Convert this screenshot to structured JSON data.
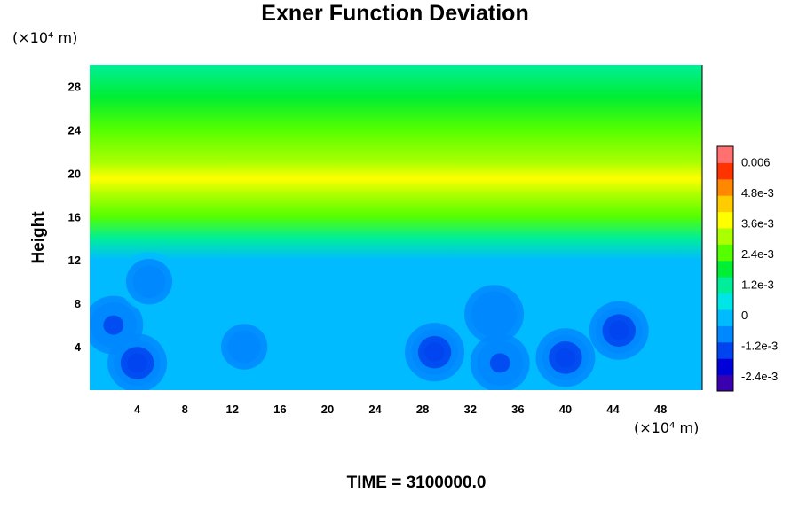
{
  "chart_data": {
    "type": "heatmap",
    "title": "Exner Function Deviation",
    "ylabel": "Height",
    "x_unit": "(×10⁴ m)",
    "y_unit": "(×10⁴ m)",
    "xlim": [
      0,
      51.5
    ],
    "ylim": [
      0,
      30
    ],
    "x_ticks": [
      "4",
      "8",
      "12",
      "16",
      "20",
      "24",
      "28",
      "32",
      "36",
      "40",
      "44",
      "48"
    ],
    "y_ticks": [
      "4",
      "8",
      "12",
      "16",
      "20",
      "24",
      "28"
    ],
    "colorbar": {
      "ticks": [
        "0.006",
        "4.8e-3",
        "3.6e-3",
        "2.4e-3",
        "1.2e-3",
        "0",
        "-1.2e-3",
        "-2.4e-3"
      ],
      "range": [
        -0.003,
        0.0066
      ],
      "colors": [
        "#3a00b0",
        "#0000d8",
        "#0044f0",
        "#0088ff",
        "#00bbff",
        "#00e5e5",
        "#00ee99",
        "#00ee33",
        "#55ff00",
        "#aaff00",
        "#ffff00",
        "#ffcc00",
        "#ff8800",
        "#ff3300",
        "#ff7070"
      ]
    },
    "mean_profile": [
      {
        "height": 0,
        "value": 2e-05
      },
      {
        "height": 4,
        "value": -0.0001
      },
      {
        "height": 8,
        "value": -0.00025
      },
      {
        "height": 10,
        "value": -0.0004
      },
      {
        "height": 12,
        "value": 0.0001
      },
      {
        "height": 14,
        "value": 0.0012
      },
      {
        "height": 16,
        "value": 0.0024
      },
      {
        "height": 18,
        "value": 0.0033
      },
      {
        "height": 19.5,
        "value": 0.0036
      },
      {
        "height": 21,
        "value": 0.0031
      },
      {
        "height": 24,
        "value": 0.0022
      },
      {
        "height": 27,
        "value": 0.0016
      },
      {
        "height": 30,
        "value": 0.0012
      }
    ],
    "minima": [
      {
        "x": 2,
        "y": 6,
        "value": -0.0012
      },
      {
        "x": 4,
        "y": 2.5,
        "value": -0.0014
      },
      {
        "x": 13,
        "y": 4,
        "value": -0.0008
      },
      {
        "x": 29,
        "y": 3.5,
        "value": -0.0014
      },
      {
        "x": 34.5,
        "y": 2.5,
        "value": -0.0012
      },
      {
        "x": 40,
        "y": 3,
        "value": -0.0013
      },
      {
        "x": 44.5,
        "y": 5.5,
        "value": -0.0015
      },
      {
        "x": 34,
        "y": 7,
        "value": -0.0009
      },
      {
        "x": 5,
        "y": 10,
        "value": -0.0008
      }
    ]
  },
  "footer": "TIME = 3100000.0"
}
